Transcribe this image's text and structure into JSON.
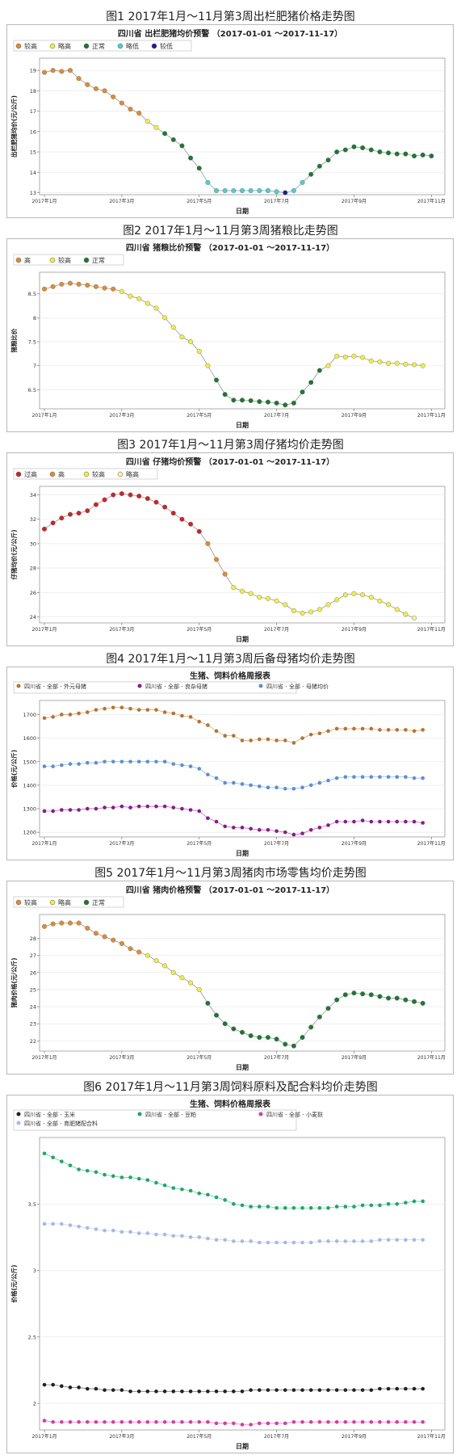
{
  "charts": [
    {
      "caption": "图1 2017年1月～11月第3周出栏肥猪价格走势图",
      "chart_data": {
        "type": "line",
        "title": "四川省 出栏肥猪均价预警 （2017-01-01 ～2017-11-17）",
        "xlabel": "日期",
        "ylabel": "出栏肥猪均价(元/公斤)",
        "ylim": [
          12.9,
          19.6
        ],
        "yticks": [
          13,
          14,
          15,
          16,
          17,
          18,
          19
        ],
        "xticks": [
          {
            "w": 0,
            "label": "2017年1月"
          },
          {
            "w": 9,
            "label": "2017年3月"
          },
          {
            "w": 18,
            "label": "2017年5月"
          },
          {
            "w": 27,
            "label": "2017年7月"
          },
          {
            "w": 36,
            "label": "2017年9月"
          },
          {
            "w": 45,
            "label": "2017年11月"
          }
        ],
        "legend_placement": "top-left",
        "legend": [
          {
            "label": "较高",
            "color": "#e48a2c"
          },
          {
            "label": "略高",
            "color": "#f2ef3b"
          },
          {
            "label": "正常",
            "color": "#1a7a2e"
          },
          {
            "label": "略低",
            "color": "#46d2d2"
          },
          {
            "label": "较低",
            "color": "#1c1c9c"
          }
        ],
        "values": [
          18.9,
          19.0,
          18.95,
          19.0,
          18.6,
          18.3,
          18.1,
          18.0,
          17.7,
          17.4,
          17.1,
          16.9,
          16.5,
          16.2,
          15.9,
          15.6,
          15.3,
          14.7,
          14.2,
          13.5,
          13.1,
          13.1,
          13.1,
          13.1,
          13.1,
          13.1,
          13.1,
          13.05,
          13.0,
          13.1,
          13.5,
          13.9,
          14.3,
          14.6,
          15.0,
          15.1,
          15.25,
          15.2,
          15.1,
          15.0,
          14.95,
          14.9,
          14.9,
          14.8,
          14.85,
          14.8
        ],
        "levels": [
          0,
          0,
          0,
          0,
          0,
          0,
          0,
          0,
          0,
          0,
          0,
          0,
          1,
          1,
          2,
          2,
          2,
          2,
          2,
          3,
          3,
          3,
          3,
          3,
          3,
          3,
          3,
          3,
          4,
          3,
          3,
          2,
          2,
          2,
          2,
          2,
          2,
          2,
          2,
          2,
          2,
          2,
          2,
          2,
          2,
          2
        ]
      }
    },
    {
      "caption": "图2 2017年1月～11月第3周猪粮比走势图",
      "chart_data": {
        "type": "line",
        "title": "四川省 猪粮比价预警 （2017-01-01 ～2017-11-17）",
        "xlabel": "日期",
        "ylabel": "猪粮比价",
        "ylim": [
          6.1,
          8.95
        ],
        "yticks": [
          6.5,
          7.0,
          7.5,
          8.0,
          8.5
        ],
        "xticks": [
          {
            "w": 0,
            "label": "2017年1月"
          },
          {
            "w": 9,
            "label": "2017年3月"
          },
          {
            "w": 18,
            "label": "2017年5月"
          },
          {
            "w": 27,
            "label": "2017年7月"
          },
          {
            "w": 36,
            "label": "2017年9月"
          },
          {
            "w": 45,
            "label": "2017年11月"
          }
        ],
        "legend_placement": "top-left",
        "legend": [
          {
            "label": "高",
            "color": "#e48a2c"
          },
          {
            "label": "较高",
            "color": "#f2ef3b"
          },
          {
            "label": "正常",
            "color": "#1a7a2e"
          }
        ],
        "values": [
          8.6,
          8.65,
          8.7,
          8.72,
          8.7,
          8.68,
          8.65,
          8.62,
          8.6,
          8.55,
          8.45,
          8.4,
          8.3,
          8.2,
          8.0,
          7.8,
          7.6,
          7.5,
          7.3,
          7.0,
          6.7,
          6.4,
          6.28,
          6.28,
          6.27,
          6.25,
          6.24,
          6.22,
          6.18,
          6.22,
          6.45,
          6.65,
          6.9,
          7.0,
          7.2,
          7.18,
          7.2,
          7.17,
          7.1,
          7.08,
          7.05,
          7.05,
          7.03,
          7.02,
          7.0
        ],
        "levels": [
          0,
          0,
          0,
          0,
          0,
          0,
          0,
          0,
          0,
          1,
          1,
          1,
          1,
          1,
          1,
          1,
          1,
          1,
          1,
          1,
          2,
          2,
          2,
          2,
          2,
          2,
          2,
          2,
          2,
          2,
          2,
          2,
          2,
          1,
          1,
          1,
          1,
          1,
          1,
          1,
          1,
          1,
          1,
          1,
          1
        ]
      }
    },
    {
      "caption": "图3 2017年1月～11月第3周仔猪均价走势图",
      "chart_data": {
        "type": "line",
        "title": "四川省 仔猪均价预警 （2017-01-01 ～2017-11-17）",
        "xlabel": "日期",
        "ylabel": "仔猪均价(元/公斤)",
        "ylim": [
          23.5,
          34.7
        ],
        "yticks": [
          24,
          26,
          28,
          30,
          32,
          34
        ],
        "xticks": [
          {
            "w": 0,
            "label": "2017年1月"
          },
          {
            "w": 9,
            "label": "2017年3月"
          },
          {
            "w": 18,
            "label": "2017年5月"
          },
          {
            "w": 27,
            "label": "2017年7月"
          },
          {
            "w": 36,
            "label": "2017年9月"
          },
          {
            "w": 45,
            "label": "2017年11月"
          }
        ],
        "legend_placement": "top-left",
        "legend": [
          {
            "label": "过高",
            "color": "#d42020"
          },
          {
            "label": "高",
            "color": "#e48a2c"
          },
          {
            "label": "较高",
            "color": "#f2ef3b"
          },
          {
            "label": "略高",
            "color": "#f7f3a0"
          }
        ],
        "values": [
          31.2,
          31.7,
          32.1,
          32.4,
          32.5,
          32.7,
          33.2,
          33.6,
          34.0,
          34.1,
          34.0,
          33.9,
          33.7,
          33.4,
          33.0,
          32.5,
          32.0,
          31.6,
          31.0,
          30.0,
          28.7,
          27.5,
          26.4,
          26.1,
          25.9,
          25.6,
          25.5,
          25.3,
          25.0,
          24.5,
          24.3,
          24.4,
          24.6,
          25.0,
          25.4,
          25.8,
          25.9,
          25.8,
          25.6,
          25.3,
          25.0,
          24.6,
          24.2,
          23.9
        ],
        "levels": [
          0,
          0,
          0,
          0,
          0,
          0,
          0,
          0,
          0,
          0,
          0,
          0,
          0,
          0,
          0,
          0,
          0,
          0,
          0,
          1,
          1,
          1,
          2,
          2,
          2,
          2,
          2,
          2,
          2,
          2,
          2,
          2,
          2,
          2,
          2,
          2,
          2,
          2,
          2,
          2,
          2,
          2,
          2,
          3
        ]
      }
    },
    {
      "caption": "图4 2017年1月～11月第3周后备母猪均价走势图",
      "chart_data": {
        "type": "line",
        "title": "生猪、饲料价格周报表",
        "xlabel": "日期",
        "ylabel": "价格(元/公斤)",
        "ylim": [
          1180,
          1760
        ],
        "yticks": [
          1200,
          1300,
          1400,
          1500,
          1600,
          1700
        ],
        "xticks": [
          {
            "w": 0,
            "label": "2017年1月"
          },
          {
            "w": 9,
            "label": "2017年3月"
          },
          {
            "w": 18,
            "label": "2017年5月"
          },
          {
            "w": 27,
            "label": "2017年7月"
          },
          {
            "w": 36,
            "label": "2017年9月"
          },
          {
            "w": 45,
            "label": "2017年11月"
          }
        ],
        "legend_placement": "top-left",
        "series": [
          {
            "name": "四川省 - 全部 - 外元母猪",
            "color": "#b8732b",
            "values": [
              1685,
              1690,
              1700,
              1700,
              1705,
              1710,
              1720,
              1725,
              1730,
              1730,
              1725,
              1720,
              1720,
              1720,
              1710,
              1705,
              1695,
              1690,
              1670,
              1655,
              1630,
              1610,
              1610,
              1590,
              1590,
              1595,
              1595,
              1590,
              1590,
              1580,
              1600,
              1615,
              1620,
              1630,
              1640,
              1640,
              1640,
              1640,
              1640,
              1635,
              1635,
              1635,
              1635,
              1630,
              1635
            ]
          },
          {
            "name": "四川省 - 全部 - 良杂母猪",
            "color": "#8a1a8a",
            "values": [
              1290,
              1290,
              1295,
              1295,
              1295,
              1300,
              1300,
              1305,
              1305,
              1310,
              1305,
              1310,
              1310,
              1310,
              1310,
              1305,
              1300,
              1295,
              1290,
              1260,
              1245,
              1225,
              1220,
              1220,
              1215,
              1210,
              1210,
              1205,
              1200,
              1190,
              1195,
              1210,
              1220,
              1230,
              1245,
              1245,
              1245,
              1250,
              1245,
              1245,
              1245,
              1245,
              1245,
              1245,
              1240
            ]
          },
          {
            "name": "四川省 - 全部 - 母猪均价",
            "color": "#5b8fd6",
            "values": [
              1480,
              1480,
              1485,
              1490,
              1490,
              1495,
              1495,
              1500,
              1500,
              1500,
              1500,
              1500,
              1500,
              1500,
              1500,
              1490,
              1485,
              1480,
              1470,
              1445,
              1430,
              1410,
              1410,
              1405,
              1400,
              1395,
              1390,
              1390,
              1385,
              1385,
              1390,
              1400,
              1410,
              1420,
              1430,
              1435,
              1435,
              1435,
              1435,
              1435,
              1435,
              1435,
              1435,
              1430,
              1430
            ]
          }
        ]
      }
    },
    {
      "caption": "图5 2017年1月～11月第3周猪肉市场零售均价走势图",
      "chart_data": {
        "type": "line",
        "title": "四川省 猪肉价格预警 （2017-01-01 ～2017-11-17）",
        "xlabel": "日期",
        "ylabel": "猪肉价格(元/公斤)",
        "ylim": [
          21.4,
          29.4
        ],
        "yticks": [
          22,
          23,
          24,
          25,
          26,
          27,
          28
        ],
        "xticks": [
          {
            "w": 0,
            "label": "2017年1月"
          },
          {
            "w": 9,
            "label": "2017年3月"
          },
          {
            "w": 18,
            "label": "2017年5月"
          },
          {
            "w": 27,
            "label": "2017年7月"
          },
          {
            "w": 36,
            "label": "2017年9月"
          },
          {
            "w": 45,
            "label": "2017年11月"
          }
        ],
        "legend_placement": "top-left",
        "legend": [
          {
            "label": "较高",
            "color": "#e48a2c"
          },
          {
            "label": "略高",
            "color": "#f2ef3b"
          },
          {
            "label": "正常",
            "color": "#1a7a2e"
          }
        ],
        "values": [
          28.7,
          28.85,
          28.9,
          28.9,
          28.9,
          28.6,
          28.3,
          28.1,
          27.9,
          27.7,
          27.4,
          27.2,
          27.0,
          26.7,
          26.4,
          26.0,
          25.7,
          25.4,
          25.0,
          24.2,
          23.5,
          23.0,
          22.7,
          22.5,
          22.3,
          22.2,
          22.2,
          22.1,
          21.8,
          21.7,
          22.2,
          22.8,
          23.4,
          23.9,
          24.4,
          24.7,
          24.8,
          24.75,
          24.7,
          24.6,
          24.5,
          24.5,
          24.4,
          24.3,
          24.2
        ],
        "levels": [
          0,
          0,
          0,
          0,
          0,
          0,
          0,
          0,
          0,
          0,
          0,
          0,
          1,
          1,
          1,
          1,
          1,
          1,
          1,
          2,
          2,
          2,
          2,
          2,
          2,
          2,
          2,
          2,
          2,
          2,
          2,
          2,
          2,
          2,
          2,
          2,
          2,
          2,
          2,
          2,
          2,
          2,
          2,
          2,
          2
        ]
      }
    },
    {
      "caption": "图6 2017年1月～11月第3周饲料原料及配合料均价走势图",
      "chart_data": {
        "type": "line",
        "title": "生猪、饲料价格周报表",
        "xlabel": "日期",
        "ylabel": "价格(元/公斤)",
        "ylim": [
          1.8,
          4.0
        ],
        "yticks": [
          2.0,
          2.5,
          3.0,
          3.5
        ],
        "xticks": [
          {
            "w": 0,
            "label": "2017年1月"
          },
          {
            "w": 9,
            "label": "2017年3月"
          },
          {
            "w": 18,
            "label": "2017年5月"
          },
          {
            "w": 27,
            "label": "2017年7月"
          },
          {
            "w": 36,
            "label": "2017年9月"
          },
          {
            "w": 45,
            "label": "2017年11月"
          }
        ],
        "legend_placement": "top-left",
        "series": [
          {
            "name": "四川省 - 全部 - 玉米",
            "color": "#222222",
            "values": [
              2.14,
              2.14,
              2.13,
              2.12,
              2.12,
              2.11,
              2.11,
              2.1,
              2.1,
              2.1,
              2.09,
              2.09,
              2.09,
              2.09,
              2.09,
              2.09,
              2.09,
              2.09,
              2.09,
              2.09,
              2.09,
              2.09,
              2.09,
              2.09,
              2.1,
              2.1,
              2.1,
              2.1,
              2.1,
              2.1,
              2.1,
              2.1,
              2.1,
              2.1,
              2.1,
              2.1,
              2.1,
              2.1,
              2.1,
              2.11,
              2.11,
              2.11,
              2.11,
              2.11,
              2.11
            ]
          },
          {
            "name": "四川省 - 全部 - 豆粕",
            "color": "#1aa86a",
            "values": [
              3.88,
              3.85,
              3.82,
              3.79,
              3.76,
              3.75,
              3.74,
              3.72,
              3.71,
              3.7,
              3.7,
              3.69,
              3.68,
              3.66,
              3.64,
              3.62,
              3.61,
              3.6,
              3.58,
              3.57,
              3.55,
              3.53,
              3.5,
              3.49,
              3.48,
              3.48,
              3.48,
              3.47,
              3.47,
              3.47,
              3.47,
              3.47,
              3.47,
              3.47,
              3.48,
              3.48,
              3.48,
              3.49,
              3.49,
              3.49,
              3.5,
              3.5,
              3.51,
              3.52,
              3.52
            ]
          },
          {
            "name": "四川省 - 全部 - 小麦麸",
            "color": "#d93aa8",
            "values": [
              1.87,
              1.86,
              1.86,
              1.86,
              1.86,
              1.86,
              1.86,
              1.86,
              1.86,
              1.86,
              1.86,
              1.86,
              1.86,
              1.86,
              1.86,
              1.86,
              1.86,
              1.86,
              1.86,
              1.86,
              1.85,
              1.85,
              1.85,
              1.84,
              1.84,
              1.85,
              1.85,
              1.85,
              1.85,
              1.86,
              1.86,
              1.86,
              1.86,
              1.86,
              1.86,
              1.86,
              1.86,
              1.86,
              1.86,
              1.86,
              1.86,
              1.86,
              1.86,
              1.86,
              1.86
            ]
          },
          {
            "name": "四川省 - 全部 - 育肥猪配合料",
            "color": "#a8b8e8",
            "values": [
              3.35,
              3.35,
              3.35,
              3.34,
              3.33,
              3.32,
              3.31,
              3.3,
              3.3,
              3.29,
              3.29,
              3.28,
              3.28,
              3.27,
              3.27,
              3.26,
              3.26,
              3.25,
              3.25,
              3.24,
              3.23,
              3.23,
              3.22,
              3.22,
              3.22,
              3.21,
              3.21,
              3.21,
              3.21,
              3.21,
              3.21,
              3.21,
              3.22,
              3.22,
              3.22,
              3.22,
              3.22,
              3.22,
              3.22,
              3.23,
              3.23,
              3.23,
              3.23,
              3.23,
              3.23
            ]
          }
        ]
      }
    }
  ]
}
